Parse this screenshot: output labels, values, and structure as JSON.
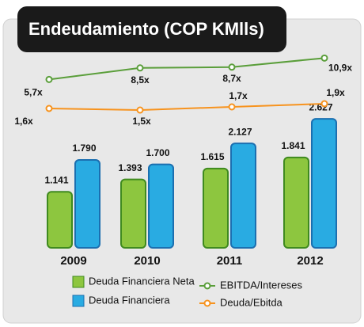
{
  "chart_data": {
    "type": "bar",
    "title": "Endeudamiento (COP KMlls)",
    "categories": [
      "2009",
      "2010",
      "2011",
      "2012"
    ],
    "series": [
      {
        "name": "Deuda Financiera Neta",
        "type": "bar",
        "color": "#8dc63f",
        "values": [
          1141,
          1393,
          1615,
          1841
        ],
        "value_labels": [
          "1.141",
          "1.393",
          "1.615",
          "1.841"
        ]
      },
      {
        "name": "Deuda Financiera",
        "type": "bar",
        "color": "#29abe2",
        "values": [
          1790,
          1700,
          2127,
          2627
        ],
        "value_labels": [
          "1.790",
          "1.700",
          "2.127",
          "2.627"
        ]
      },
      {
        "name": "EBITDA/Intereses",
        "type": "line",
        "color": "#5a9e3a",
        "values": [
          5.7,
          8.5,
          8.7,
          10.9
        ],
        "value_labels": [
          "5,7x",
          "8,5x",
          "8,7x",
          "10,9x"
        ]
      },
      {
        "name": "Deuda/Ebitda",
        "type": "line",
        "color": "#f7931e",
        "values": [
          1.6,
          1.5,
          1.7,
          1.9
        ],
        "value_labels": [
          "1,6x",
          "1,5x",
          "1,7x",
          "1,9x"
        ]
      }
    ]
  }
}
